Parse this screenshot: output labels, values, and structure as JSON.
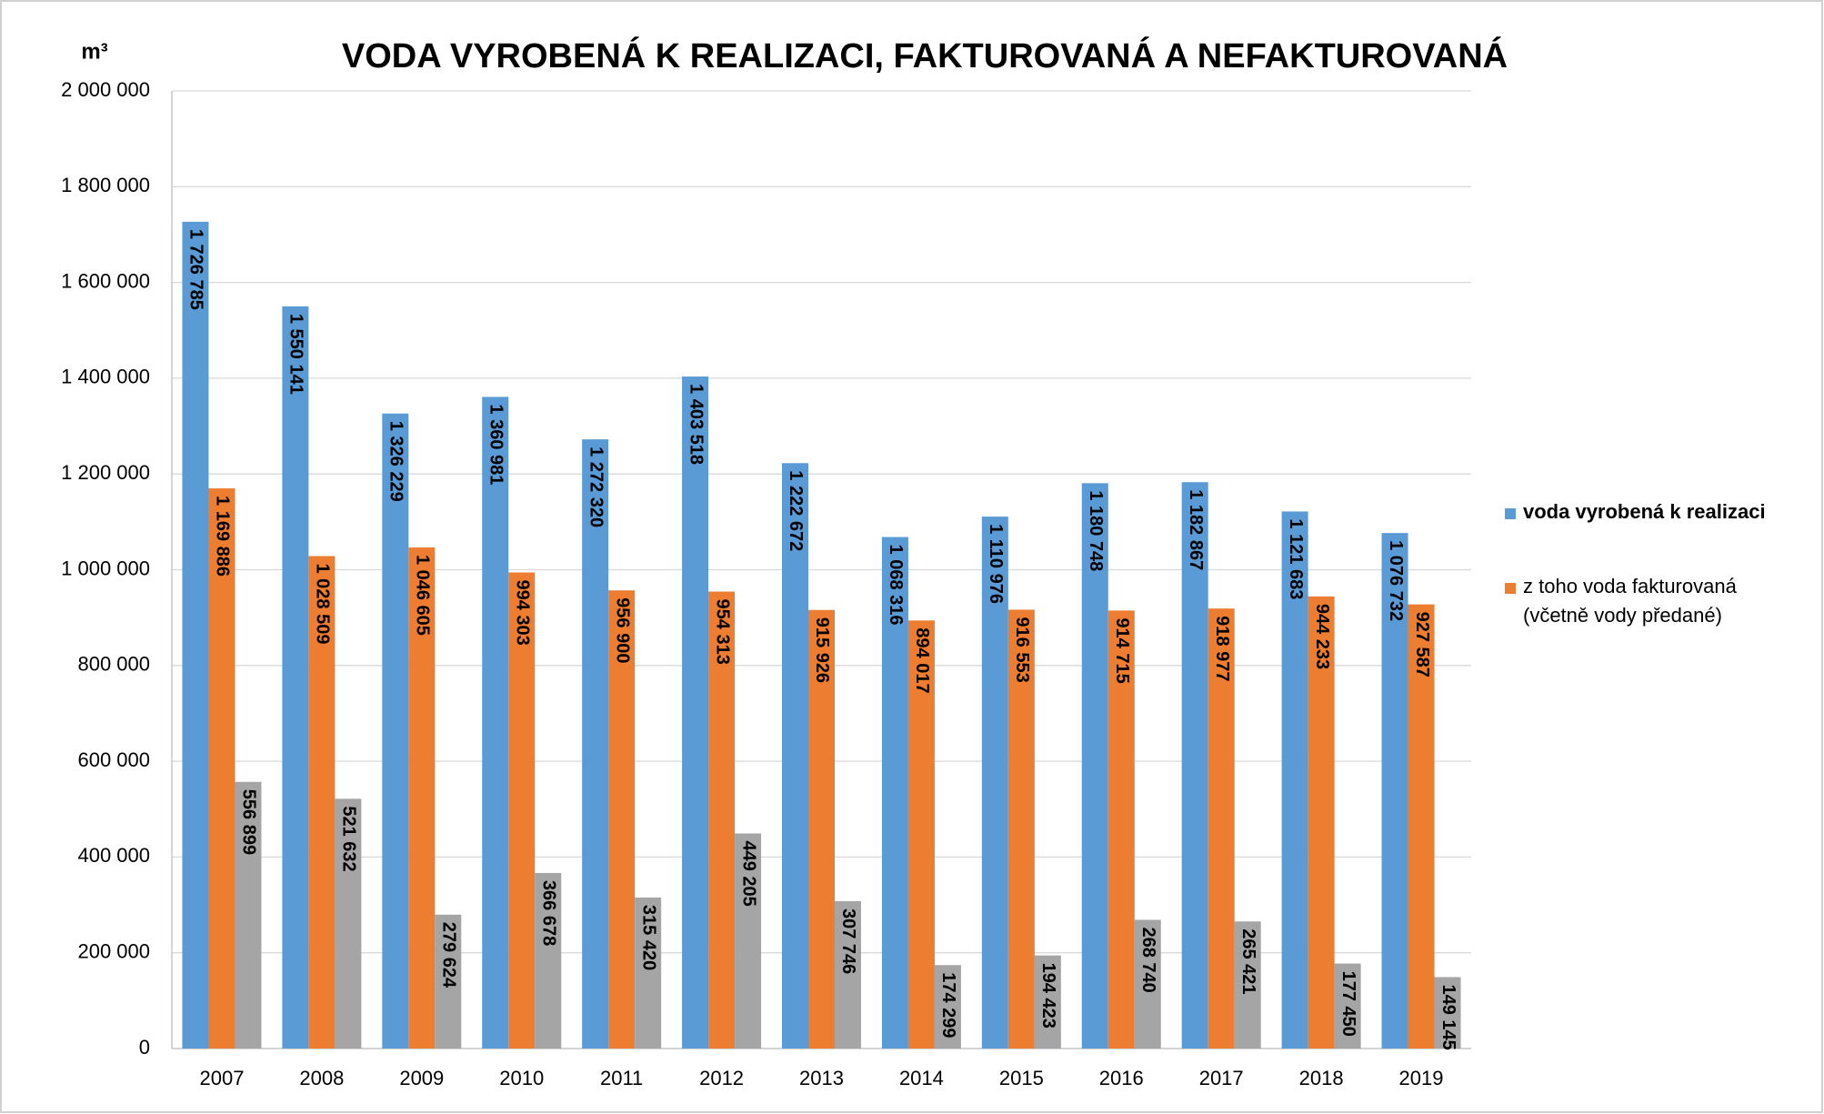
{
  "chart_data": {
    "type": "bar",
    "title": "VODA VYROBENÁ K REALIZACI, FAKTUROVANÁ A NEFAKTUROVANÁ",
    "y_label": "m³",
    "categories": [
      "2007",
      "2008",
      "2009",
      "2010",
      "2011",
      "2012",
      "2013",
      "2014",
      "2015",
      "2016",
      "2017",
      "2018",
      "2019"
    ],
    "series": [
      {
        "name": "voda vyrobená k realizaci",
        "color": "#5b9bd5",
        "values": [
          1726785,
          1550141,
          1326229,
          1360981,
          1272320,
          1403518,
          1222672,
          1068316,
          1110976,
          1180748,
          1182867,
          1121683,
          1076732
        ],
        "value_labels": [
          "1 726 785",
          "1 550 141",
          "1 326 229",
          "1 360 981",
          "1 272 320",
          "1 403 518",
          "1 222 672",
          "1 068 316",
          "1 110 976",
          "1 180 748",
          "1 182 867",
          "1 121 683",
          "1 076 732"
        ]
      },
      {
        "name": "z toho voda fakturovaná (včetně vody předané)",
        "color": "#ed7d31",
        "values": [
          1169886,
          1028509,
          1046605,
          994303,
          956900,
          954313,
          915926,
          894017,
          916553,
          914715,
          918977,
          944233,
          927587
        ],
        "value_labels": [
          "1 169 886",
          "1 028 509",
          "1 046 605",
          "994 303",
          "956 900",
          "954 313",
          "915 926",
          "894 017",
          "916 553",
          "914 715",
          "918 977",
          "944 233",
          "927 587"
        ]
      },
      {
        "color": "#a5a5a5",
        "values": [
          556899,
          521632,
          279624,
          366678,
          315420,
          449205,
          307746,
          174299,
          194423,
          268740,
          265421,
          177450,
          149145
        ],
        "value_labels": [
          "556 899",
          "521 632",
          "279 624",
          "366 678",
          "315 420",
          "449 205",
          "307 746",
          "174 299",
          "194 423",
          "268 740",
          "265 421",
          "177 450",
          "149 145"
        ]
      }
    ],
    "ylim": [
      0,
      2000000
    ],
    "yticks": [
      0,
      {
        "value": 200000,
        "label": "200 000"
      },
      {
        "value": 400000,
        "label": "400 000"
      },
      {
        "value": 600000,
        "label": "600 000"
      },
      {
        "value": 800000,
        "label": "800 000"
      },
      {
        "value": 1000000,
        "label": "1 000 000"
      },
      {
        "value": 1200000,
        "label": "1 200 000"
      },
      {
        "value": 1400000,
        "label": "1 400 000"
      },
      {
        "value": 1600000,
        "label": "1 600 000"
      },
      {
        "value": 1800000,
        "label": "1 800 000"
      },
      {
        "value": 2000000,
        "label": "2 000 000"
      }
    ],
    "grid": true,
    "legend": "right"
  }
}
